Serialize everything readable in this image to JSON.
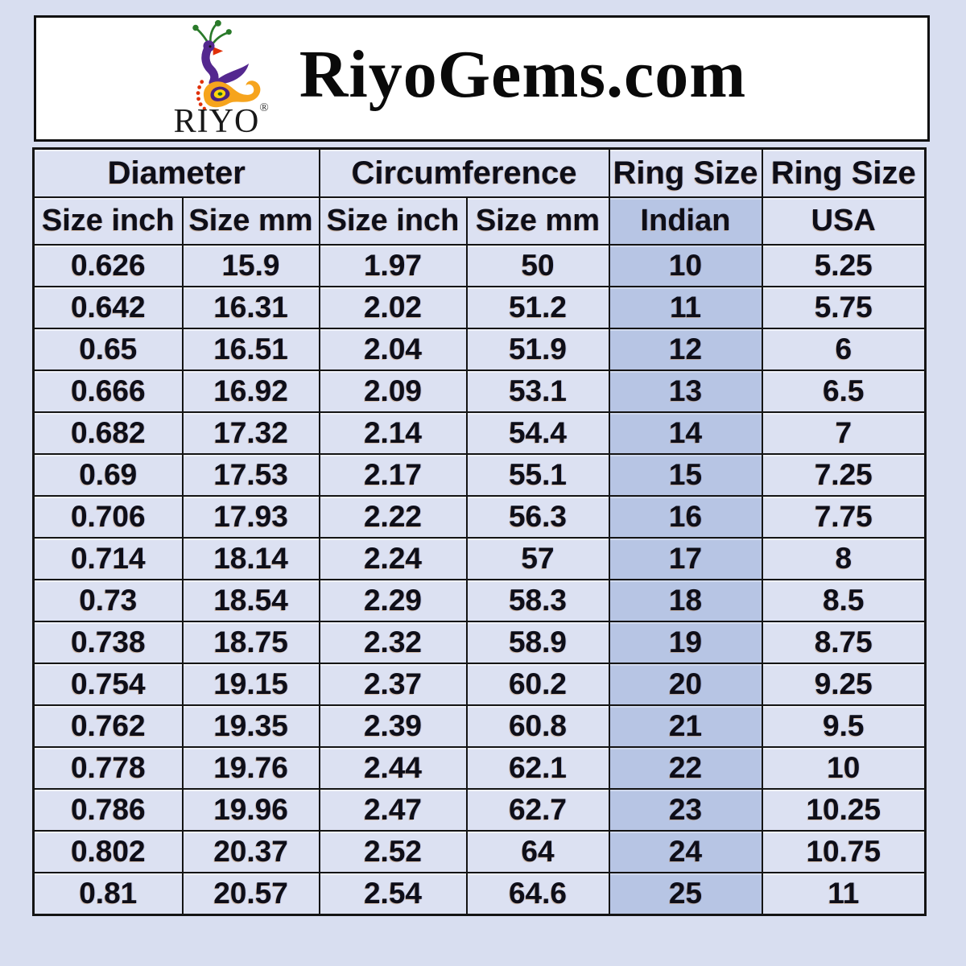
{
  "header": {
    "brand": "RiyoGems.com",
    "logo_text": "RIYO",
    "registered_mark": "®",
    "logo_icon": "peacock-icon"
  },
  "chart_data": {
    "type": "table",
    "title": "RiyoGems.com",
    "group_headers": [
      {
        "label": "Diameter",
        "span": 2
      },
      {
        "label": "Circumference",
        "span": 2
      },
      {
        "label": "Ring Size",
        "span": 1
      },
      {
        "label": "Ring Size",
        "span": 1
      }
    ],
    "sub_headers": [
      "Size inch",
      "Size mm",
      "Size inch",
      "Size mm",
      "Indian",
      "USA"
    ],
    "rows": [
      [
        "0.626",
        "15.9",
        "1.97",
        "50",
        "10",
        "5.25"
      ],
      [
        "0.642",
        "16.31",
        "2.02",
        "51.2",
        "11",
        "5.75"
      ],
      [
        "0.65",
        "16.51",
        "2.04",
        "51.9",
        "12",
        "6"
      ],
      [
        "0.666",
        "16.92",
        "2.09",
        "53.1",
        "13",
        "6.5"
      ],
      [
        "0.682",
        "17.32",
        "2.14",
        "54.4",
        "14",
        "7"
      ],
      [
        "0.69",
        "17.53",
        "2.17",
        "55.1",
        "15",
        "7.25"
      ],
      [
        "0.706",
        "17.93",
        "2.22",
        "56.3",
        "16",
        "7.75"
      ],
      [
        "0.714",
        "18.14",
        "2.24",
        "57",
        "17",
        "8"
      ],
      [
        "0.73",
        "18.54",
        "2.29",
        "58.3",
        "18",
        "8.5"
      ],
      [
        "0.738",
        "18.75",
        "2.32",
        "58.9",
        "19",
        "8.75"
      ],
      [
        "0.754",
        "19.15",
        "2.37",
        "60.2",
        "20",
        "9.25"
      ],
      [
        "0.762",
        "19.35",
        "2.39",
        "60.8",
        "21",
        "9.5"
      ],
      [
        "0.778",
        "19.76",
        "2.44",
        "62.1",
        "22",
        "10"
      ],
      [
        "0.786",
        "19.96",
        "2.47",
        "62.7",
        "23",
        "10.25"
      ],
      [
        "0.802",
        "20.37",
        "2.52",
        "64",
        "24",
        "10.75"
      ],
      [
        "0.81",
        "20.57",
        "2.54",
        "64.6",
        "25",
        "11"
      ]
    ],
    "highlighted_column": "Indian",
    "highlighted_column_index": 4,
    "layout": {
      "grid": "on",
      "header_rows": 2,
      "data_rows": 16
    }
  },
  "colors": {
    "page_bg": "#d8def0",
    "cell_bg": "#dce1f2",
    "highlight_bg": "#b7c5e4",
    "border": "#141414",
    "text": "#0e0e18",
    "logo_purple": "#54288f",
    "logo_orange": "#f6a41d",
    "logo_green": "#2a7a2a",
    "logo_red": "#e03008",
    "logo_yellow": "#ffd60a"
  }
}
